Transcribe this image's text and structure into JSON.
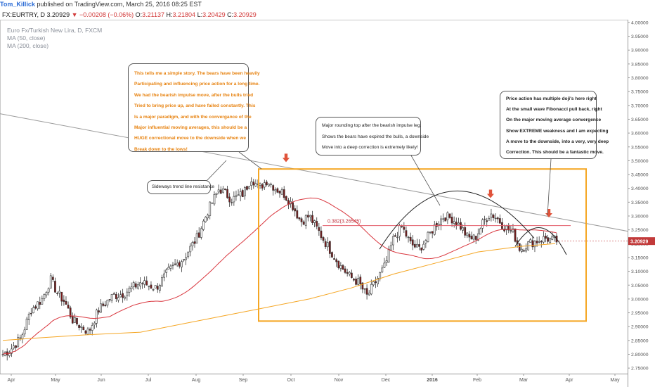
{
  "header": {
    "author": "Tom_Killick",
    "published": "published on TradingView.com, March 25, 2016 08:25 EST"
  },
  "quote": {
    "symbol": "FX:EURTRY, D",
    "last": "3.20929",
    "change": "−0.00208 (−0.06%)",
    "open_label": "O:",
    "open": "3.21137",
    "high_label": "H:",
    "high": "3.21804",
    "low_label": "L:",
    "low": "3.20429",
    "close_label": "C:",
    "close": "3.20929"
  },
  "legend": {
    "instrument": "Euro Fx/Turkish New Lira, D, FXCM",
    "ma50": "MA (50, close)",
    "ma200": "MA (200, close)"
  },
  "annotations": {
    "callout1": [
      "This tells me a simple story.  The bears have been heavily",
      "Participating and influencing price action for a long time.",
      "We had the bearish impulse move, after the bulls tried",
      "Tried to bring price up, and have failed constantly. This",
      "Is a major paradigm, and with the convergance of the",
      "Major influential moving averages, this should be a",
      "HUGE correctional move to the downside when we",
      "Break down to the lows!"
    ],
    "callout2": "Sideways trend line resistance",
    "callout3": [
      "Major rounding top after the bearish impulse leg.",
      "Shows the bears have expired the bulls, a downside",
      "Move into a deep correction is extremely likely!"
    ],
    "callout4": [
      "Price action has multiple doji's here right",
      "At the small wave Fibonacci pull back, right",
      "On the major moving average convergence",
      "Show EXTREME weakness and I am expecting",
      "A move to the downside, into a very, very deep",
      "Correction. This should be a fantastic move."
    ],
    "fib_label": "0.382(3.26545)"
  },
  "chart_data": {
    "type": "candlestick",
    "title": "Euro Fx/Turkish New Lira, D, FXCM",
    "x_ticks": [
      "Apr",
      "May",
      "Jun",
      "Jul",
      "Aug",
      "Sep",
      "Oct",
      "Nov",
      "Dec",
      "2016",
      "Feb",
      "Mar",
      "Apr",
      "May"
    ],
    "y_ticks": [
      "4.00000",
      "3.95000",
      "3.90000",
      "3.85000",
      "3.80000",
      "3.75000",
      "3.70000",
      "3.65000",
      "3.60000",
      "3.55000",
      "3.50000",
      "3.45000",
      "3.40000",
      "3.35000",
      "3.30000",
      "3.25000",
      "3.20000",
      "3.15000",
      "3.10000",
      "3.05000",
      "3.00000",
      "2.95000",
      "2.90000",
      "2.85000",
      "2.80000",
      "2.75000"
    ],
    "ylim": [
      2.73,
      4.01
    ],
    "last_price": "3.20929",
    "fib_level": 3.26545,
    "key_closes": [
      {
        "date": "Apr 2015",
        "value": 2.8
      },
      {
        "date": "May 2015",
        "value": 3.0
      },
      {
        "date": "Jun 2015",
        "value": 2.93
      },
      {
        "date": "Jul 2015",
        "value": 2.95
      },
      {
        "date": "Aug 2015",
        "value": 3.22
      },
      {
        "date": "mid Sep 2015",
        "value": 3.44
      },
      {
        "date": "Oct 2015",
        "value": 3.3
      },
      {
        "date": "Nov 2015",
        "value": 3.12
      },
      {
        "date": "late Nov 2015",
        "value": 3.01
      },
      {
        "date": "Dec 2015",
        "value": 3.22
      },
      {
        "date": "2016",
        "value": 3.28
      },
      {
        "date": "Feb 2016",
        "value": 3.24
      },
      {
        "date": "Mar 2016",
        "value": 3.21
      }
    ],
    "colors": {
      "up": "#ffffff",
      "down": "#7a1b1b",
      "ma50": "#d9363e",
      "ma200": "#f5a623",
      "box": "#f5a623",
      "arrow": "#e0533a",
      "fib": "#e35d6a"
    }
  }
}
